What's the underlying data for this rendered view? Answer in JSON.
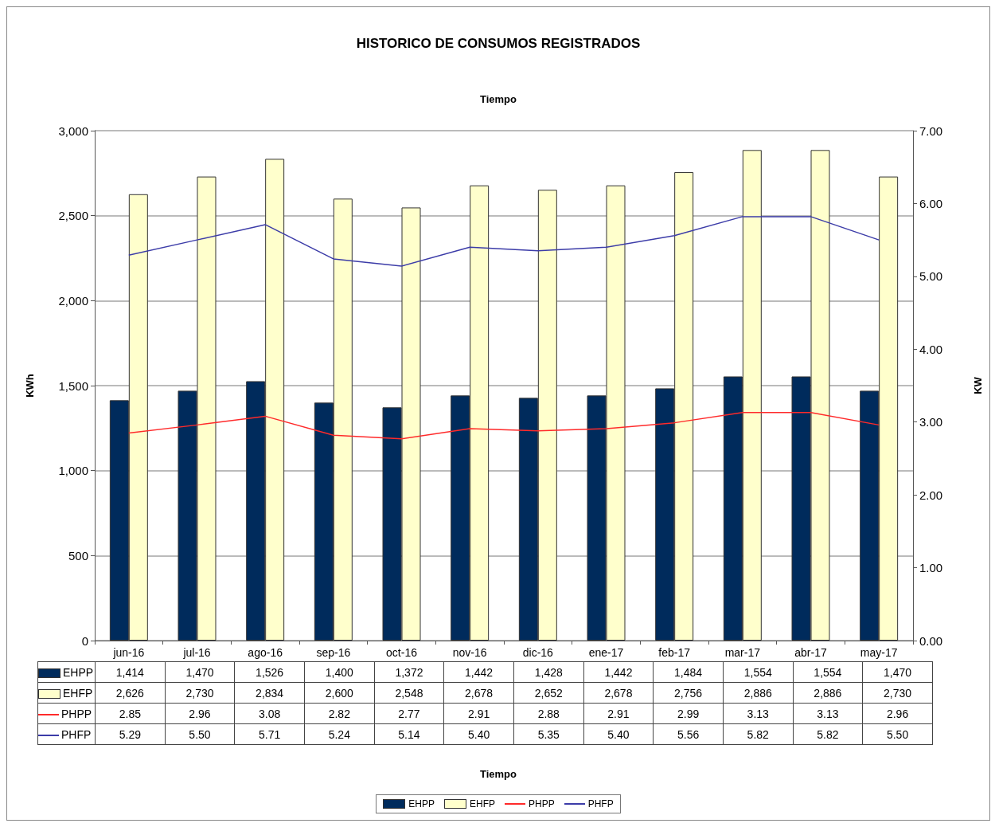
{
  "chart_data": {
    "type": "bar",
    "title": "HISTORICO DE CONSUMOS REGISTRADOS",
    "subtitle": "Tiempo",
    "annotations": [
      "Tiempo"
    ],
    "ylabel": "KWh",
    "y2label": "KW",
    "categories": [
      "jun-16",
      "jul-16",
      "ago-16",
      "sep-16",
      "oct-16",
      "nov-16",
      "dic-16",
      "ene-17",
      "feb-17",
      "mar-17",
      "abr-17",
      "may-17"
    ],
    "series": [
      {
        "name": "EHPP",
        "color": "#002b5c",
        "values": [
          1414,
          1470,
          1526,
          1400,
          1372,
          1442,
          1428,
          1442,
          1484,
          1554,
          1554,
          1470
        ],
        "value_labels": [
          "1,414",
          "1,470",
          "1,526",
          "1,400",
          "1,372",
          "1,442",
          "1,428",
          "1,442",
          "1,484",
          "1,554",
          "1,554",
          "1,470"
        ]
      },
      {
        "name": "EHFP",
        "color": "#ffffcc",
        "values": [
          2626,
          2730,
          2834,
          2600,
          2548,
          2678,
          2652,
          2678,
          2756,
          2886,
          2886,
          2730
        ],
        "value_labels": [
          "2,626",
          "2,730",
          "2,834",
          "2,600",
          "2,548",
          "2,678",
          "2,652",
          "2,678",
          "2,756",
          "2,886",
          "2,886",
          "2,730"
        ]
      },
      {
        "name": "PHPP",
        "type": "line",
        "axis": "y2",
        "color": "#ff2a2a",
        "values": [
          2.85,
          2.96,
          3.08,
          2.82,
          2.77,
          2.91,
          2.88,
          2.91,
          2.99,
          3.13,
          3.13,
          2.96
        ],
        "value_labels": [
          "2.85",
          "2.96",
          "3.08",
          "2.82",
          "2.77",
          "2.91",
          "2.88",
          "2.91",
          "2.99",
          "3.13",
          "3.13",
          "2.96"
        ]
      },
      {
        "name": "PHFP",
        "type": "line",
        "axis": "y2",
        "color": "#3c3ca8",
        "values": [
          5.29,
          5.5,
          5.71,
          5.24,
          5.14,
          5.4,
          5.35,
          5.4,
          5.56,
          5.82,
          5.82,
          5.5
        ],
        "value_labels": [
          "5.29",
          "5.50",
          "5.71",
          "5.24",
          "5.14",
          "5.40",
          "5.35",
          "5.40",
          "5.56",
          "5.82",
          "5.82",
          "5.50"
        ]
      }
    ],
    "ylim": [
      0,
      3000
    ],
    "yticks": [
      {
        "value": 0,
        "label": "0"
      },
      {
        "value": 500,
        "label": "500"
      },
      {
        "value": 1000,
        "label": "1,000"
      },
      {
        "value": 1500,
        "label": "1,500"
      },
      {
        "value": 2000,
        "label": "2,000"
      },
      {
        "value": 2500,
        "label": "2,500"
      },
      {
        "value": 3000,
        "label": "3,000"
      }
    ],
    "y2lim": [
      0,
      7
    ],
    "y2ticks": [
      {
        "value": 0,
        "label": "0.00"
      },
      {
        "value": 1,
        "label": "1.00"
      },
      {
        "value": 2,
        "label": "2.00"
      },
      {
        "value": 3,
        "label": "3.00"
      },
      {
        "value": 4,
        "label": "4.00"
      },
      {
        "value": 5,
        "label": "5.00"
      },
      {
        "value": 6,
        "label": "6.00"
      },
      {
        "value": 7,
        "label": "7.00"
      }
    ],
    "grid": "y",
    "legend": "bottom",
    "marker": "none"
  }
}
